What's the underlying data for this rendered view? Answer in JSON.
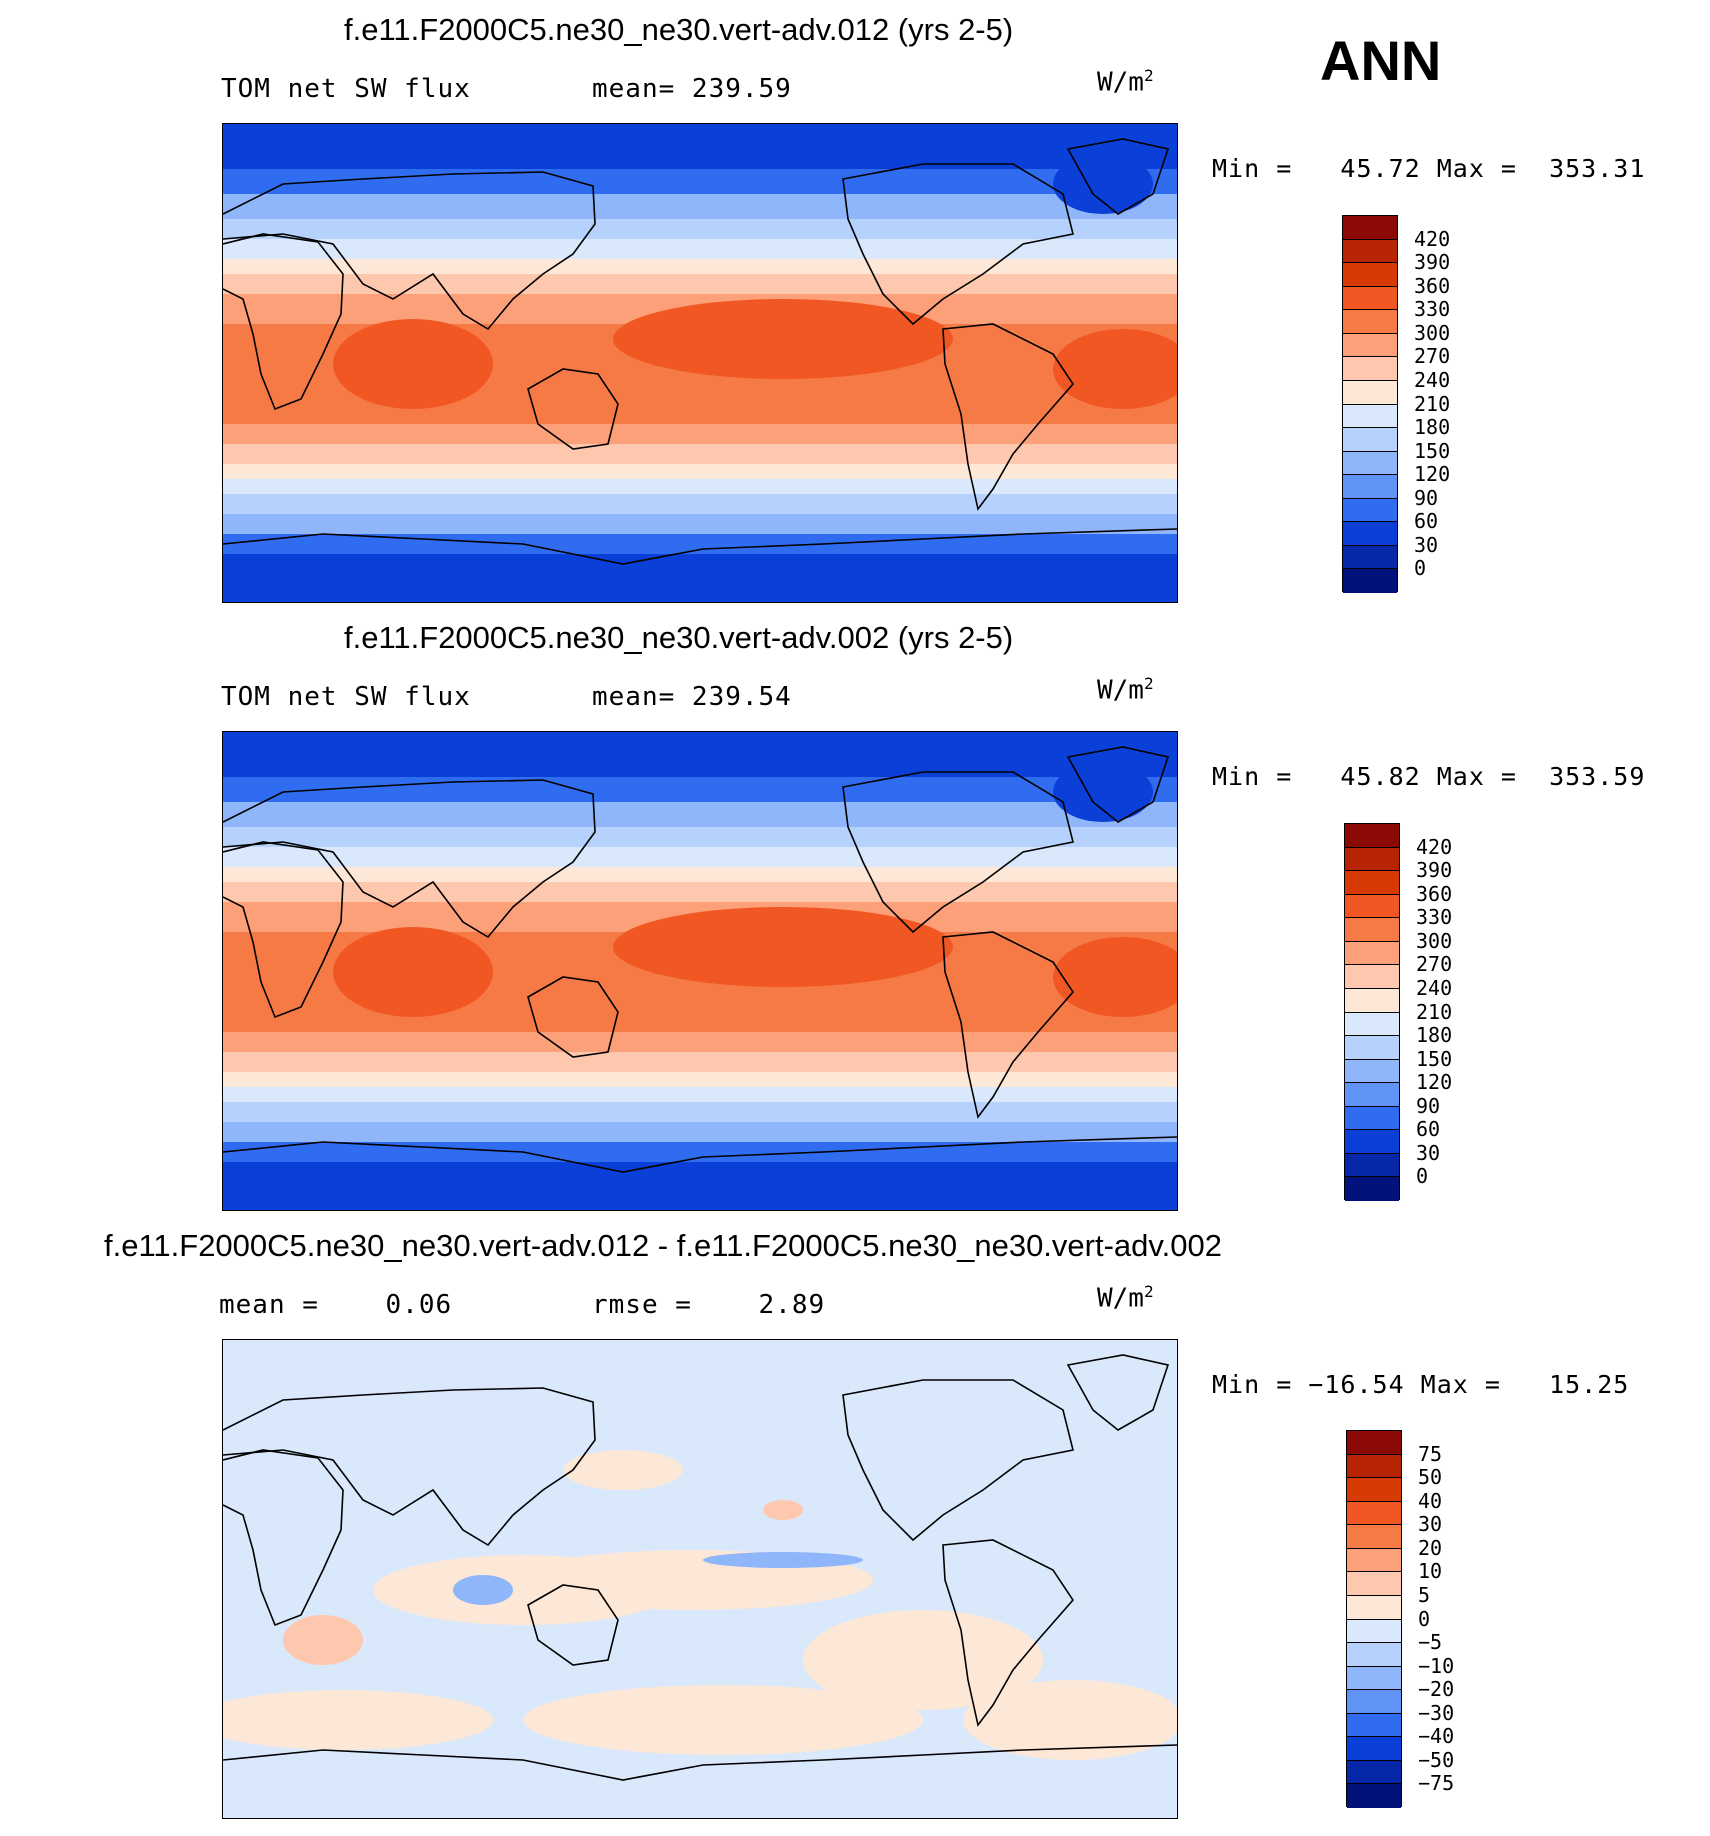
{
  "season": "ANN",
  "units_label": "W/m",
  "units_sup": "2",
  "panels": [
    {
      "title": "f.e11.F2000C5.ne30_ne30.vert-adv.012 (yrs 2-5)",
      "left_label": "TOM net SW flux",
      "stat_label": "mean= 239.59",
      "minmax": "Min =   45.72 Max =  353.31",
      "kind": "abs"
    },
    {
      "title": "f.e11.F2000C5.ne30_ne30.vert-adv.002 (yrs 2-5)",
      "left_label": "TOM net SW flux",
      "stat_label": "mean= 239.54",
      "minmax": "Min =   45.82 Max =  353.59",
      "kind": "abs"
    },
    {
      "title": "f.e11.F2000C5.ne30_ne30.vert-adv.012 - f.e11.F2000C5.ne30_ne30.vert-adv.002",
      "left_label": "mean =    0.06",
      "stat_label": "rmse =    2.89",
      "minmax": "Min = −16.54 Max =   15.25",
      "kind": "diff"
    }
  ],
  "colorbar_abs": {
    "labels": [
      "420",
      "390",
      "360",
      "330",
      "300",
      "270",
      "240",
      "210",
      "180",
      "150",
      "120",
      "90",
      "60",
      "30",
      "0"
    ],
    "colors": [
      "#8b0a05",
      "#b62404",
      "#d83a06",
      "#f05722",
      "#f67a45",
      "#fca07a",
      "#fec8ae",
      "#fde7d6",
      "#d9e8fb",
      "#b6d1fb",
      "#8fb6fa",
      "#5f93f5",
      "#2f6cf0",
      "#0a40d8",
      "#0628a8",
      "#03117a"
    ]
  },
  "colorbar_diff": {
    "labels": [
      "75",
      "50",
      "40",
      "30",
      "20",
      "10",
      "5",
      "0",
      "−5",
      "−10",
      "−20",
      "−30",
      "−40",
      "−50",
      "−75"
    ],
    "colors": [
      "#8b0a05",
      "#b62404",
      "#d83a06",
      "#f05722",
      "#f67a45",
      "#fca07a",
      "#fec8ae",
      "#fde7d6",
      "#d9e8fb",
      "#b6d1fb",
      "#8fb6fa",
      "#5f93f5",
      "#2f6cf0",
      "#0a40d8",
      "#0628a8",
      "#03117a"
    ]
  }
}
